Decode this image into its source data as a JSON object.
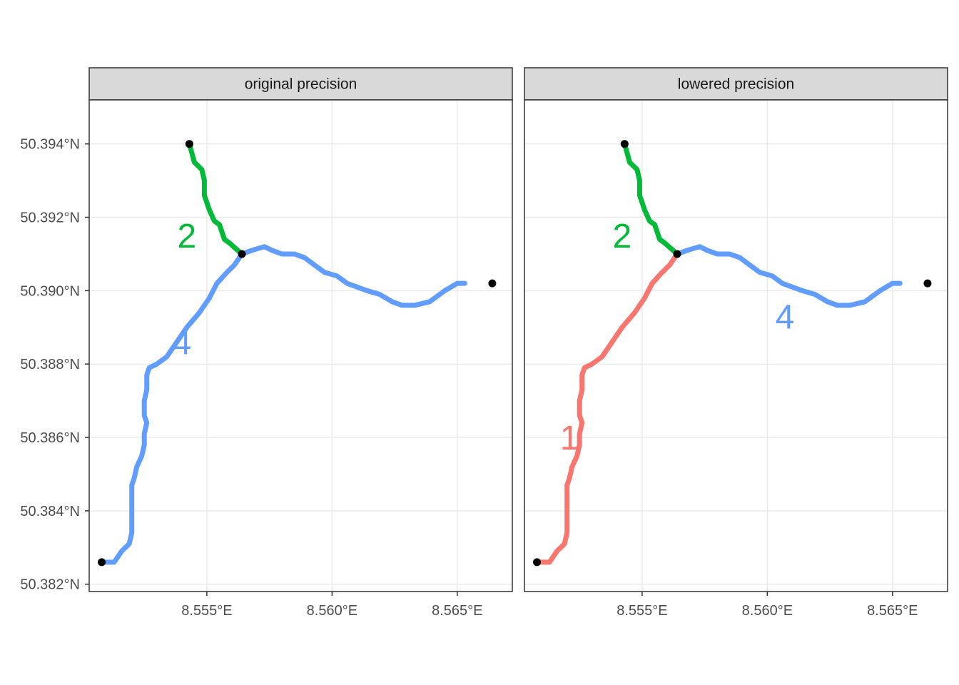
{
  "chart_data": {
    "type": "line",
    "title": "",
    "xlabel": "",
    "ylabel": "",
    "xlim": [
      8.5503,
      8.5672
    ],
    "ylim": [
      50.3818,
      50.3952
    ],
    "x_ticks": [
      {
        "value": 8.555,
        "label": "8.555°E"
      },
      {
        "value": 8.56,
        "label": "8.560°E"
      },
      {
        "value": 8.565,
        "label": "8.565°E"
      }
    ],
    "y_ticks": [
      {
        "value": 50.382,
        "label": "50.382°N"
      },
      {
        "value": 50.384,
        "label": "50.384°N"
      },
      {
        "value": 50.386,
        "label": "50.386°N"
      },
      {
        "value": 50.388,
        "label": "50.388°N"
      },
      {
        "value": 50.39,
        "label": "50.390°N"
      },
      {
        "value": 50.392,
        "label": "50.392°N"
      },
      {
        "value": 50.394,
        "label": "50.394°N"
      }
    ],
    "grid": true,
    "legend": "none",
    "colors": {
      "1": "#F8766D",
      "2": "#00BA38",
      "4": "#619CFF",
      "node": "#000000"
    },
    "nodes": [
      {
        "x": 8.5543,
        "y": 50.394
      },
      {
        "x": 8.5564,
        "y": 50.391
      },
      {
        "x": 8.5664,
        "y": 50.3902
      },
      {
        "x": 8.5508,
        "y": 50.3826
      }
    ],
    "paths": {
      "north": [
        [
          8.5543,
          50.394
        ],
        [
          8.5545,
          50.3935
        ],
        [
          8.5548,
          50.3933
        ],
        [
          8.5549,
          50.393
        ],
        [
          8.5549,
          50.3926
        ],
        [
          8.5551,
          50.3922
        ],
        [
          8.5553,
          50.3919
        ],
        [
          8.5555,
          50.3918
        ],
        [
          8.5557,
          50.3914
        ],
        [
          8.5559,
          50.3913
        ],
        [
          8.5564,
          50.391
        ]
      ],
      "east": [
        [
          8.5564,
          50.391
        ],
        [
          8.5568,
          50.3911
        ],
        [
          8.5573,
          50.3912
        ],
        [
          8.5576,
          50.3911
        ],
        [
          8.558,
          50.391
        ],
        [
          8.5585,
          50.391
        ],
        [
          8.5589,
          50.3909
        ],
        [
          8.5593,
          50.3907
        ],
        [
          8.5597,
          50.3905
        ],
        [
          8.5602,
          50.3904
        ],
        [
          8.5606,
          50.3902
        ],
        [
          8.5614,
          50.39
        ],
        [
          8.5619,
          50.3899
        ],
        [
          8.5624,
          50.3897
        ],
        [
          8.5628,
          50.3896
        ],
        [
          8.5633,
          50.3896
        ],
        [
          8.5639,
          50.3897
        ],
        [
          8.5645,
          50.39
        ],
        [
          8.565,
          50.3902
        ],
        [
          8.5653,
          50.3902
        ]
      ],
      "south": [
        [
          8.5564,
          50.391
        ],
        [
          8.5561,
          50.3907
        ],
        [
          8.5558,
          50.3905
        ],
        [
          8.5554,
          50.3902
        ],
        [
          8.5551,
          50.3898
        ],
        [
          8.5547,
          50.3894
        ],
        [
          8.5542,
          50.389
        ],
        [
          8.5538,
          50.3886
        ],
        [
          8.5534,
          50.3882
        ],
        [
          8.553,
          50.388
        ],
        [
          8.5527,
          50.3879
        ],
        [
          8.5526,
          50.3877
        ],
        [
          8.5526,
          50.3873
        ],
        [
          8.5525,
          50.387
        ],
        [
          8.5525,
          50.3866
        ],
        [
          8.5526,
          50.3864
        ],
        [
          8.5525,
          50.3861
        ],
        [
          8.5525,
          50.3858
        ],
        [
          8.5524,
          50.3855
        ],
        [
          8.5522,
          50.3852
        ],
        [
          8.5521,
          50.3849
        ],
        [
          8.552,
          50.3847
        ],
        [
          8.552,
          50.3843
        ],
        [
          8.552,
          50.3838
        ],
        [
          8.552,
          50.3834
        ],
        [
          8.5519,
          50.3831
        ],
        [
          8.5516,
          50.3829
        ],
        [
          8.5513,
          50.3826
        ],
        [
          8.5508,
          50.3826
        ]
      ]
    },
    "panels": [
      {
        "title": "original precision",
        "edges": [
          {
            "id": "2",
            "path": "north",
            "label": "2",
            "label_pos": {
              "x": 8.5542,
              "y": 50.3915
            }
          },
          {
            "id": "4",
            "path": "east",
            "label": "",
            "label_pos": null
          },
          {
            "id": "4",
            "path": "south",
            "label": "4",
            "label_pos": {
              "x": 8.554,
              "y": 50.3886
            }
          }
        ]
      },
      {
        "title": "lowered precision",
        "edges": [
          {
            "id": "2",
            "path": "north",
            "label": "2",
            "label_pos": {
              "x": 8.5542,
              "y": 50.3915
            }
          },
          {
            "id": "4",
            "path": "east",
            "label": "4",
            "label_pos": {
              "x": 8.5607,
              "y": 50.3893
            }
          },
          {
            "id": "1",
            "path": "south",
            "label": "1",
            "label_pos": {
              "x": 8.5521,
              "y": 50.386
            }
          }
        ]
      }
    ]
  }
}
